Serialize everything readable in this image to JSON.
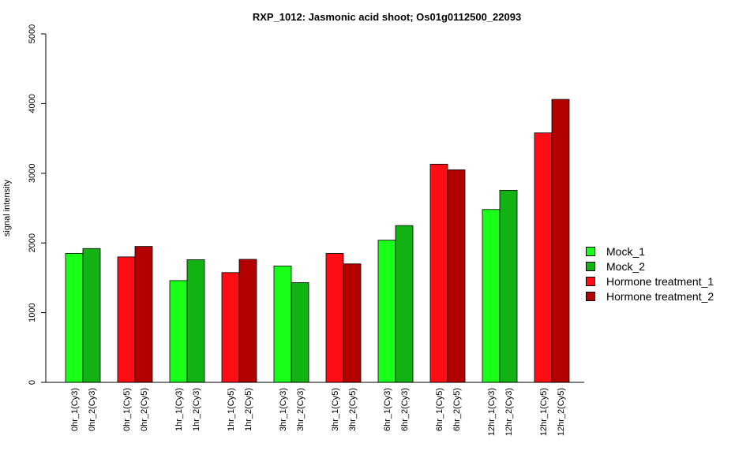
{
  "chart_data": {
    "type": "bar",
    "title": "RXP_1012: Jasmonic acid shoot; Os01g0112500_22093",
    "xlabel": "",
    "ylabel": "signal intensity",
    "ylim": [
      0,
      5000
    ],
    "yticks": [
      "0",
      "1000",
      "2000",
      "3000",
      "4000",
      "5000"
    ],
    "legend_position": "right",
    "groups": [
      {
        "bars": [
          {
            "label": "0hr_1(Cy3)",
            "value": 1850,
            "series": 0
          },
          {
            "label": "0hr_2(Cy3)",
            "value": 1920,
            "series": 1
          }
        ]
      },
      {
        "bars": [
          {
            "label": "0hr_1(Cy5)",
            "value": 1800,
            "series": 2
          },
          {
            "label": "0hr_2(Cy5)",
            "value": 1950,
            "series": 3
          }
        ]
      },
      {
        "bars": [
          {
            "label": "1hr_1(Cy3)",
            "value": 1460,
            "series": 0
          },
          {
            "label": "1hr_2(Cy3)",
            "value": 1760,
            "series": 1
          }
        ]
      },
      {
        "bars": [
          {
            "label": "1hr_1(Cy5)",
            "value": 1575,
            "series": 2
          },
          {
            "label": "1hr_2(Cy5)",
            "value": 1765,
            "series": 3
          }
        ]
      },
      {
        "bars": [
          {
            "label": "3hr_1(Cy3)",
            "value": 1670,
            "series": 0
          },
          {
            "label": "3hr_2(Cy3)",
            "value": 1430,
            "series": 1
          }
        ]
      },
      {
        "bars": [
          {
            "label": "3hr_1(Cy5)",
            "value": 1850,
            "series": 2
          },
          {
            "label": "3hr_2(Cy5)",
            "value": 1700,
            "series": 3
          }
        ]
      },
      {
        "bars": [
          {
            "label": "6hr_1(Cy3)",
            "value": 2040,
            "series": 0
          },
          {
            "label": "6hr_2(Cy3)",
            "value": 2250,
            "series": 1
          }
        ]
      },
      {
        "bars": [
          {
            "label": "6hr_1(Cy5)",
            "value": 3130,
            "series": 2
          },
          {
            "label": "6hr_2(Cy5)",
            "value": 3050,
            "series": 3
          }
        ]
      },
      {
        "bars": [
          {
            "label": "12hr_1(Cy3)",
            "value": 2480,
            "series": 0
          },
          {
            "label": "12hr_2(Cy3)",
            "value": 2755,
            "series": 1
          }
        ]
      },
      {
        "bars": [
          {
            "label": "12hr_1(Cy5)",
            "value": 3580,
            "series": 2
          },
          {
            "label": "12hr_2(Cy5)",
            "value": 4060,
            "series": 3
          }
        ]
      }
    ],
    "series": [
      {
        "name": "Mock_1",
        "color": "#1aff1a"
      },
      {
        "name": "Mock_2",
        "color": "#12b212"
      },
      {
        "name": "Hormone treatment_1",
        "color": "#ff0d14"
      },
      {
        "name": "Hormone treatment_2",
        "color": "#b30000"
      }
    ]
  }
}
